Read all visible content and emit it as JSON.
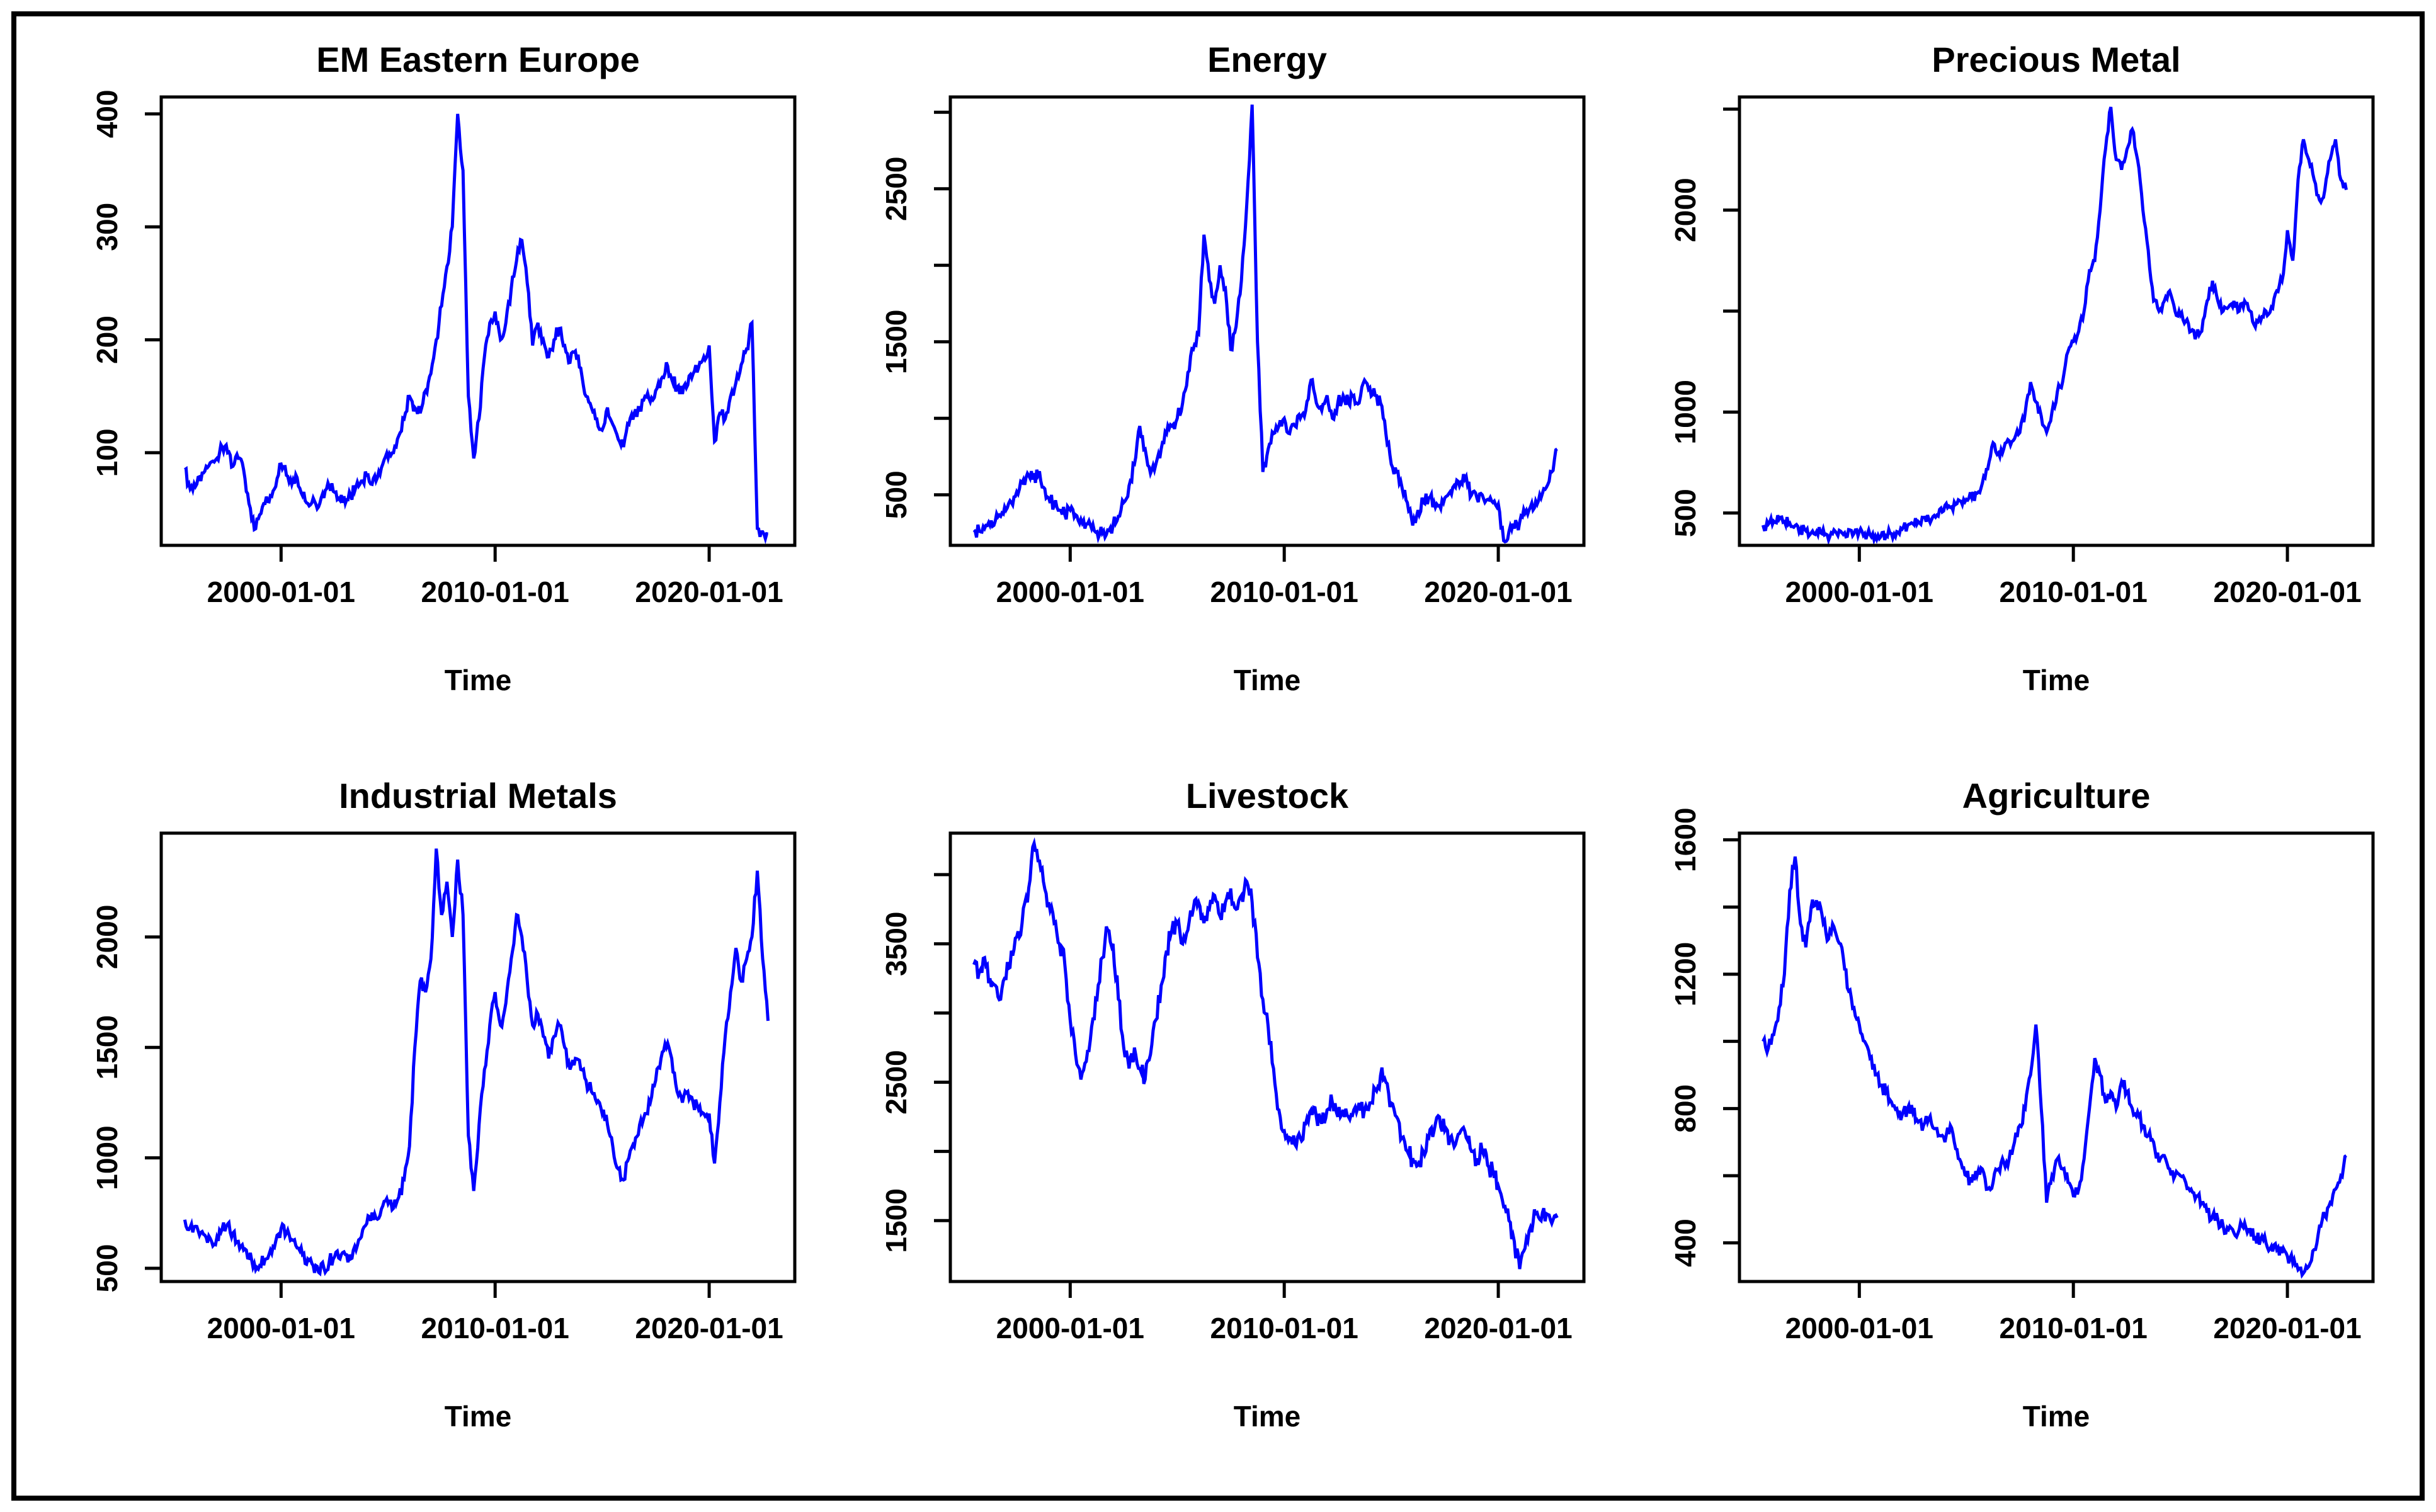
{
  "figure": {
    "background": "#FFFFFF",
    "frame_color": "#000000",
    "axis_color": "#000000",
    "text_color": "#000000",
    "line_color": "#0000FF"
  },
  "time_axis": {
    "label": "Time",
    "tick_values": [
      2000,
      2010,
      2020
    ],
    "tick_labels": [
      "2000-01-01",
      "2010-01-01",
      "2020-01-01"
    ]
  },
  "chart_data": [
    {
      "type": "line",
      "title": "EM Eastern Europe",
      "xlabel": "Time",
      "line_color": "#0000FF",
      "x_start": 1995.5,
      "x_step": 0.25,
      "xlim": [
        1994.4,
        2024.0
      ],
      "ylim": [
        18,
        415
      ],
      "yticks": [
        100,
        200,
        300,
        400
      ],
      "ytick_labels": [
        "100",
        "200",
        "300",
        "400"
      ],
      "jitter": 6,
      "values": [
        85,
        68,
        70,
        75,
        88,
        92,
        95,
        105,
        100,
        88,
        95,
        85,
        55,
        32,
        45,
        55,
        62,
        70,
        90,
        80,
        72,
        78,
        62,
        55,
        60,
        52,
        60,
        70,
        65,
        58,
        55,
        62,
        70,
        75,
        80,
        72,
        78,
        90,
        95,
        100,
        115,
        130,
        150,
        140,
        135,
        155,
        170,
        200,
        230,
        265,
        300,
        400,
        350,
        150,
        95,
        130,
        185,
        215,
        225,
        200,
        215,
        245,
        270,
        288,
        250,
        195,
        215,
        200,
        185,
        200,
        210,
        195,
        180,
        190,
        175,
        150,
        140,
        130,
        120,
        140,
        125,
        112,
        105,
        125,
        135,
        140,
        150,
        145,
        155,
        165,
        180,
        165,
        158,
        152,
        160,
        170,
        175,
        185,
        195,
        110,
        135,
        130,
        150,
        162,
        178,
        192,
        215,
        33,
        30,
        28
      ]
    },
    {
      "type": "line",
      "title": "Energy",
      "xlabel": "Time",
      "line_color": "#0000FF",
      "x_start": 1995.5,
      "x_step": 0.25,
      "xlim": [
        1994.4,
        2024.0
      ],
      "ylim": [
        170,
        3100
      ],
      "yticks": [
        500,
        1000,
        1500,
        2000,
        2500,
        3000
      ],
      "ytick_labels": [
        "500",
        "",
        "1500",
        "",
        "2500",
        ""
      ],
      "jitter": 45,
      "values": [
        270,
        263,
        280,
        300,
        330,
        360,
        400,
        450,
        520,
        580,
        640,
        600,
        630,
        550,
        480,
        430,
        400,
        370,
        400,
        370,
        340,
        310,
        280,
        260,
        250,
        270,
        300,
        360,
        450,
        560,
        700,
        950,
        800,
        640,
        700,
        800,
        900,
        950,
        1000,
        1100,
        1300,
        1450,
        1550,
        2200,
        1900,
        1750,
        2000,
        1850,
        1450,
        1600,
        1900,
        2400,
        3050,
        1500,
        650,
        800,
        900,
        950,
        1000,
        900,
        950,
        1000,
        1050,
        1250,
        1100,
        1050,
        1150,
        1000,
        1100,
        1150,
        1100,
        1150,
        1100,
        1250,
        1200,
        1150,
        1100,
        900,
        700,
        650,
        550,
        450,
        300,
        400,
        450,
        480,
        450,
        430,
        480,
        520,
        550,
        580,
        620,
        500,
        480,
        500,
        470,
        450,
        440,
        200,
        260,
        280,
        320,
        380,
        420,
        460,
        480,
        550,
        650,
        800
      ]
    },
    {
      "type": "line",
      "title": "Precious Metal",
      "xlabel": "Time",
      "line_color": "#0000FF",
      "x_start": 1995.5,
      "x_step": 0.25,
      "xlim": [
        1994.4,
        2024.0
      ],
      "ylim": [
        340,
        2560
      ],
      "yticks": [
        500,
        1000,
        1500,
        2000,
        2500
      ],
      "ytick_labels": [
        "500",
        "1000",
        "",
        "2000",
        ""
      ],
      "jitter": 28,
      "values": [
        440,
        445,
        460,
        468,
        458,
        450,
        438,
        420,
        412,
        402,
        408,
        398,
        392,
        398,
        388,
        394,
        418,
        398,
        408,
        398,
        392,
        386,
        382,
        388,
        398,
        408,
        420,
        438,
        448,
        458,
        478,
        468,
        488,
        518,
        538,
        528,
        542,
        558,
        568,
        578,
        598,
        648,
        718,
        848,
        798,
        818,
        858,
        868,
        898,
        998,
        1148,
        1050,
        980,
        900,
        1000,
        1100,
        1150,
        1300,
        1350,
        1400,
        1500,
        1700,
        1750,
        2000,
        2300,
        2510,
        2250,
        2200,
        2300,
        2400,
        2250,
        2000,
        1800,
        1550,
        1500,
        1550,
        1600,
        1500,
        1480,
        1450,
        1400,
        1380,
        1400,
        1550,
        1650,
        1550,
        1500,
        1520,
        1550,
        1500,
        1550,
        1500,
        1420,
        1450,
        1500,
        1520,
        1600,
        1650,
        1900,
        1750,
        2150,
        2350,
        2250,
        2150,
        2050,
        2100,
        2250,
        2350,
        2150,
        2100
      ]
    },
    {
      "type": "line",
      "title": "Industrial Metals",
      "xlabel": "Time",
      "line_color": "#0000FF",
      "x_start": 1995.5,
      "x_step": 0.25,
      "xlim": [
        1994.4,
        2024.0
      ],
      "ylim": [
        440,
        2470
      ],
      "yticks": [
        500,
        1000,
        1500,
        2000
      ],
      "ytick_labels": [
        "500",
        "1000",
        "1500",
        "2000"
      ],
      "jitter": 32,
      "values": [
        720,
        685,
        690,
        662,
        640,
        622,
        640,
        680,
        700,
        660,
        622,
        582,
        545,
        522,
        512,
        540,
        582,
        622,
        680,
        658,
        630,
        592,
        562,
        542,
        512,
        482,
        502,
        530,
        552,
        542,
        562,
        542,
        582,
        642,
        702,
        752,
        722,
        782,
        792,
        772,
        822,
        902,
        1052,
        1500,
        1800,
        1750,
        1900,
        2400,
        2100,
        2250,
        2000,
        2350,
        2100,
        1100,
        850,
        1150,
        1400,
        1600,
        1750,
        1600,
        1700,
        1900,
        2100,
        2000,
        1800,
        1600,
        1650,
        1550,
        1450,
        1550,
        1600,
        1500,
        1400,
        1450,
        1400,
        1350,
        1300,
        1250,
        1200,
        1150,
        1050,
        950,
        900,
        1000,
        1050,
        1150,
        1200,
        1250,
        1350,
        1450,
        1500,
        1450,
        1300,
        1250,
        1300,
        1250,
        1220,
        1200,
        1200,
        975,
        1250,
        1550,
        1750,
        1950,
        1800,
        1900,
        2000,
        2300,
        1900,
        1620
      ]
    },
    {
      "type": "line",
      "title": "Livestock",
      "xlabel": "Time",
      "line_color": "#0000FF",
      "x_start": 1995.5,
      "x_step": 0.25,
      "xlim": [
        1994.4,
        2024.0
      ],
      "ylim": [
        1060,
        4300
      ],
      "yticks": [
        1500,
        2000,
        2500,
        3000,
        3500,
        4000
      ],
      "ytick_labels": [
        "1500",
        "",
        "2500",
        "",
        "3500",
        ""
      ],
      "jitter": 75,
      "values": [
        3350,
        3300,
        3400,
        3250,
        3200,
        3100,
        3250,
        3450,
        3550,
        3650,
        3800,
        4200,
        4100,
        3950,
        3800,
        3650,
        3500,
        3350,
        2950,
        2700,
        2520,
        2650,
        2900,
        3100,
        3400,
        3600,
        3500,
        3100,
        2750,
        2600,
        2750,
        2600,
        2520,
        2700,
        2950,
        3200,
        3450,
        3600,
        3650,
        3500,
        3600,
        3750,
        3800,
        3650,
        3750,
        3850,
        3700,
        3800,
        3900,
        3750,
        3850,
        3950,
        3800,
        3400,
        3100,
        2900,
        2600,
        2300,
        2150,
        2100,
        2050,
        2100,
        2200,
        2300,
        2250,
        2200,
        2300,
        2350,
        2250,
        2300,
        2250,
        2300,
        2350,
        2300,
        2350,
        2450,
        2550,
        2500,
        2350,
        2250,
        2100,
        2000,
        1950,
        1900,
        2000,
        2100,
        2150,
        2250,
        2150,
        2100,
        2050,
        2150,
        2100,
        2000,
        1950,
        2000,
        1900,
        1850,
        1750,
        1600,
        1500,
        1350,
        1150,
        1300,
        1450,
        1550,
        1500,
        1550,
        1480,
        1520
      ]
    },
    {
      "type": "line",
      "title": "Agriculture",
      "xlabel": "Time",
      "line_color": "#0000FF",
      "x_start": 1995.5,
      "x_step": 0.25,
      "xlim": [
        1994.4,
        2024.0
      ],
      "ylim": [
        285,
        1620
      ],
      "yticks": [
        400,
        600,
        800,
        1000,
        1200,
        1400,
        1600
      ],
      "ytick_labels": [
        "400",
        "",
        "800",
        "",
        "1200",
        "",
        "1600"
      ],
      "jitter": 20,
      "values": [
        1000,
        980,
        1020,
        1100,
        1200,
        1450,
        1550,
        1350,
        1280,
        1400,
        1420,
        1380,
        1300,
        1350,
        1300,
        1250,
        1150,
        1100,
        1050,
        1000,
        950,
        900,
        870,
        850,
        820,
        800,
        780,
        800,
        790,
        760,
        750,
        770,
        740,
        720,
        700,
        750,
        680,
        640,
        600,
        580,
        600,
        620,
        560,
        580,
        620,
        640,
        650,
        700,
        750,
        800,
        900,
        1050,
        800,
        520,
        600,
        650,
        620,
        580,
        540,
        560,
        650,
        800,
        950,
        900,
        820,
        850,
        800,
        880,
        850,
        800,
        790,
        750,
        720,
        700,
        640,
        660,
        620,
        600,
        600,
        580,
        560,
        540,
        520,
        490,
        480,
        470,
        450,
        440,
        430,
        440,
        460,
        440,
        420,
        410,
        400,
        390,
        380,
        370,
        360,
        340,
        320,
        310,
        330,
        380,
        450,
        480,
        520,
        560,
        600,
        660
      ]
    }
  ]
}
